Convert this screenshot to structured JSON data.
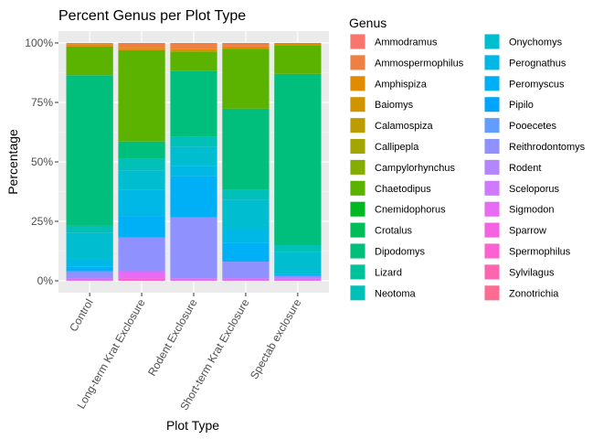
{
  "chart_data": {
    "type": "bar",
    "stacked": true,
    "title": "Percent Genus per Plot Type",
    "xlabel": "Plot Type",
    "ylabel": "Percentage",
    "ylim": [
      0,
      1
    ],
    "y_ticks": [
      0,
      0.25,
      0.5,
      0.75,
      1
    ],
    "y_tick_labels": [
      "0%",
      "25%",
      "50%",
      "75%",
      "100%"
    ],
    "categories": [
      "Control",
      "Long-term Krat Exclosure",
      "Rodent Exclosure",
      "Short-term Krat Exclosure",
      "Spectab exclosure"
    ],
    "legend_title": "Genus",
    "legend_position": "right",
    "grid": true,
    "series": [
      {
        "name": "Ammodramus",
        "color": "#F8766D",
        "values": [
          0.0,
          0.0,
          0.0,
          0.0,
          0.0
        ]
      },
      {
        "name": "Ammospermophilus",
        "color": "#EE8044",
        "values": [
          0.005,
          0.02,
          0.025,
          0.015,
          0.0
        ]
      },
      {
        "name": "Amphispiza",
        "color": "#E08B00",
        "values": [
          0.01,
          0.01,
          0.01,
          0.01,
          0.01
        ]
      },
      {
        "name": "Baiomys",
        "color": "#CF9400",
        "values": [
          0.0,
          0.0,
          0.0,
          0.0,
          0.0
        ]
      },
      {
        "name": "Calamospiza",
        "color": "#BB9D00",
        "values": [
          0.0,
          0.0,
          0.0,
          0.0,
          0.0
        ]
      },
      {
        "name": "Callipepla",
        "color": "#A3A500",
        "values": [
          0.0,
          0.0,
          0.0,
          0.0,
          0.0
        ]
      },
      {
        "name": "Campylorhynchus",
        "color": "#85AD00",
        "values": [
          0.0,
          0.0,
          0.0,
          0.0,
          0.0
        ]
      },
      {
        "name": "Chaetodipus",
        "color": "#5BB300",
        "values": [
          0.12,
          0.38,
          0.08,
          0.25,
          0.12
        ]
      },
      {
        "name": "Cnemidophorus",
        "color": "#00B81F",
        "values": [
          0.0,
          0.0,
          0.0,
          0.0,
          0.0
        ]
      },
      {
        "name": "Crotalus",
        "color": "#00BC59",
        "values": [
          0.0,
          0.0,
          0.0,
          0.0,
          0.0
        ]
      },
      {
        "name": "Dipodomys",
        "color": "#00BF7D",
        "values": [
          0.63,
          0.07,
          0.27,
          0.34,
          0.72
        ]
      },
      {
        "name": "Lizard",
        "color": "#00C19C",
        "values": [
          0.0,
          0.0,
          0.0,
          0.0,
          0.0
        ]
      },
      {
        "name": "Neotoma",
        "color": "#00C0B8",
        "values": [
          0.03,
          0.05,
          0.04,
          0.04,
          0.03
        ]
      },
      {
        "name": "Onychomys",
        "color": "#00BDD0",
        "values": [
          0.11,
          0.08,
          0.08,
          0.12,
          0.09
        ]
      },
      {
        "name": "Perognathus",
        "color": "#00B8E5",
        "values": [
          0.03,
          0.11,
          0.04,
          0.06,
          0.0
        ]
      },
      {
        "name": "Peromyscus",
        "color": "#00B0F6",
        "values": [
          0.02,
          0.09,
          0.17,
          0.08,
          0.01
        ]
      },
      {
        "name": "Pipilo",
        "color": "#00A5FF",
        "values": [
          0.0,
          0.0,
          0.0,
          0.0,
          0.0
        ]
      },
      {
        "name": "Pooecetes",
        "color": "#619CFF",
        "values": [
          0.0,
          0.0,
          0.0,
          0.0,
          0.0
        ]
      },
      {
        "name": "Reithrodontomys",
        "color": "#8F91FF",
        "values": [
          0.03,
          0.14,
          0.25,
          0.07,
          0.01
        ]
      },
      {
        "name": "Rodent",
        "color": "#B385FF",
        "values": [
          0.0,
          0.0,
          0.0,
          0.0,
          0.0
        ]
      },
      {
        "name": "Sceloporus",
        "color": "#D078FF",
        "values": [
          0.0,
          0.0,
          0.0,
          0.0,
          0.0
        ]
      },
      {
        "name": "Sigmodon",
        "color": "#E76BF3",
        "values": [
          0.01,
          0.03,
          0.01,
          0.01,
          0.01
        ]
      },
      {
        "name": "Sparrow",
        "color": "#F563E3",
        "values": [
          0.0,
          0.0,
          0.0,
          0.0,
          0.0
        ]
      },
      {
        "name": "Spermophilus",
        "color": "#FD61D1",
        "values": [
          0.0,
          0.01,
          0.0,
          0.0,
          0.0
        ]
      },
      {
        "name": "Sylvilagus",
        "color": "#FF64B0",
        "values": [
          0.0,
          0.0,
          0.0,
          0.0,
          0.0
        ]
      },
      {
        "name": "Zonotrichia",
        "color": "#FF6C91",
        "values": [
          0.0,
          0.0,
          0.0,
          0.0,
          0.0
        ]
      }
    ]
  }
}
